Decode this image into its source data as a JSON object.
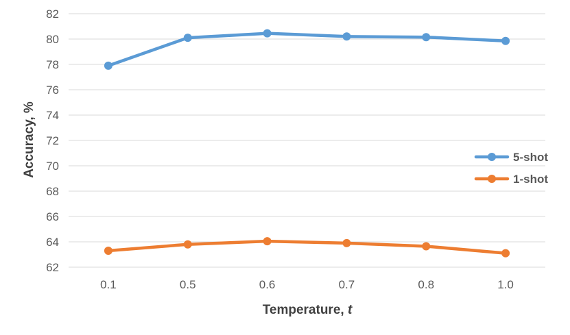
{
  "chart_data": {
    "type": "line",
    "title": "",
    "xlabel": "Temperature, ",
    "xlabel_var": "t",
    "ylabel": "Accuracy, %",
    "categories": [
      "0.1",
      "0.5",
      "0.6",
      "0.7",
      "0.8",
      "1.0"
    ],
    "ylim": [
      62,
      82
    ],
    "yticks": [
      "62",
      "64",
      "66",
      "68",
      "70",
      "72",
      "74",
      "76",
      "78",
      "80",
      "82"
    ],
    "grid": true,
    "legend_position": "right",
    "series": [
      {
        "name": "5-shot",
        "color": "#5b9bd5",
        "values": [
          77.9,
          80.1,
          80.45,
          80.2,
          80.15,
          79.85
        ]
      },
      {
        "name": "1-shot",
        "color": "#ed7d31",
        "values": [
          63.3,
          63.8,
          64.05,
          63.9,
          63.65,
          63.1
        ]
      }
    ]
  }
}
